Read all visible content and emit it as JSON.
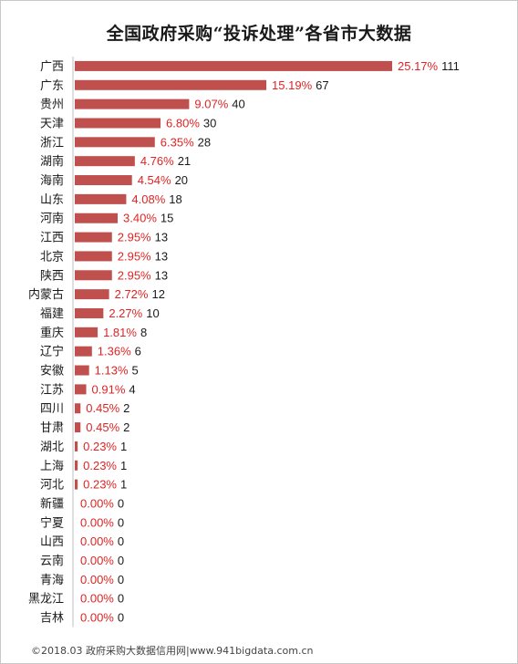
{
  "chart_data": {
    "type": "bar",
    "orientation": "horizontal",
    "title": "全国政府采购“投诉处理”各省市大数据",
    "categories": [
      "广西",
      "广东",
      "贵州",
      "天津",
      "浙江",
      "湖南",
      "海南",
      "山东",
      "河南",
      "江西",
      "北京",
      "陕西",
      "内蒙古",
      "福建",
      "重庆",
      "辽宁",
      "安徽",
      "江苏",
      "四川",
      "甘肃",
      "湖北",
      "上海",
      "河北",
      "新疆",
      "宁夏",
      "山西",
      "云南",
      "青海",
      "黑龙江",
      "吉林"
    ],
    "values": [
      111,
      67,
      40,
      30,
      28,
      21,
      20,
      18,
      15,
      13,
      13,
      13,
      12,
      10,
      8,
      6,
      5,
      4,
      2,
      2,
      1,
      1,
      1,
      0,
      0,
      0,
      0,
      0,
      0,
      0
    ],
    "percent_labels": [
      "25.17%",
      "15.19%",
      "9.07%",
      "6.80%",
      "6.35%",
      "4.76%",
      "4.54%",
      "4.08%",
      "3.40%",
      "2.95%",
      "2.95%",
      "2.95%",
      "2.72%",
      "2.27%",
      "1.81%",
      "1.36%",
      "1.13%",
      "0.91%",
      "0.45%",
      "0.45%",
      "0.23%",
      "0.23%",
      "0.23%",
      "0.00%",
      "0.00%",
      "0.00%",
      "0.00%",
      "0.00%",
      "0.00%",
      "0.00%"
    ],
    "xlim": [
      0,
      111
    ],
    "grid": false,
    "legend": "none",
    "colors": {
      "bar": "#c0504d",
      "percent": "#e02424",
      "count": "#1a1a1a",
      "axis": "#bfbfbf"
    }
  },
  "footer": "©2018.03 政府采购大数据信用网|www.941bigdata.com.cn"
}
